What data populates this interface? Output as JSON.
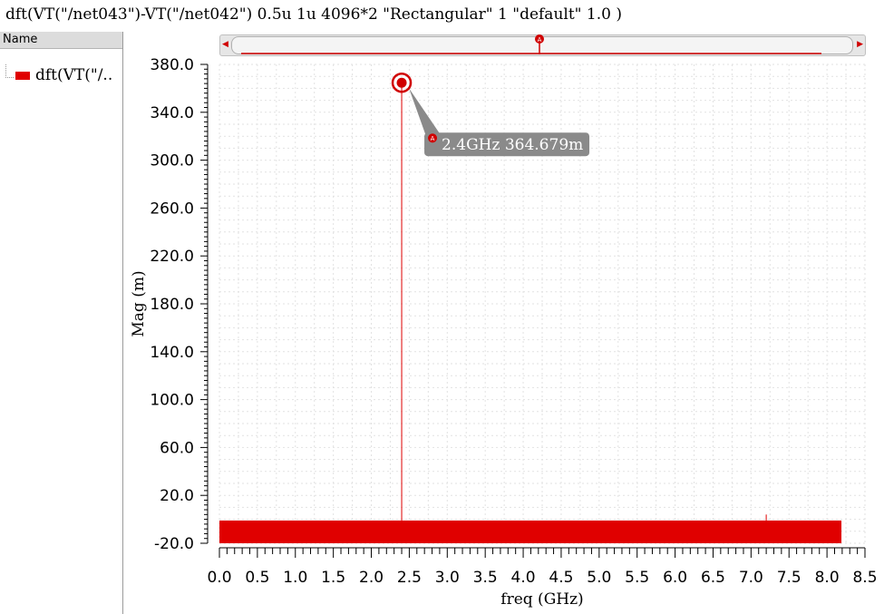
{
  "title": "dft(VT(\"/net043\")-VT(\"/net042\") 0.5u 1u 4096*2 \"Rectangular\" 1 \"default\" 1.0 )",
  "panel": {
    "header": "Name",
    "trace_label": "dft(VT(\"/..",
    "trace_color": "#e00000"
  },
  "scrollbar": {
    "left_arrow": "◀",
    "right_arrow": "▶",
    "marker_label": "A",
    "marker_position": 0.5
  },
  "chart_data": {
    "type": "line",
    "xlabel": "freq (GHz)",
    "ylabel": "Mag (m)",
    "xlim": [
      0.0,
      8.5
    ],
    "ylim": [
      -20.0,
      380.0
    ],
    "x_ticks": [
      "0.0",
      "0.5",
      "1.0",
      "1.5",
      "2.0",
      "2.5",
      "3.0",
      "3.5",
      "4.0",
      "4.5",
      "5.0",
      "5.5",
      "6.0",
      "6.5",
      "7.0",
      "7.5",
      "8.0",
      "8.5"
    ],
    "y_ticks": [
      "-20.0",
      "20.0",
      "60.0",
      "100.0",
      "140.0",
      "180.0",
      "220.0",
      "260.0",
      "300.0",
      "340.0",
      "380.0"
    ],
    "grid": true,
    "series": [
      {
        "name": "dft(VT(\"/..",
        "color": "#e00000",
        "noise_floor": {
          "x_range": [
            0.0,
            8.19
          ],
          "y_range": [
            -20.0,
            -1.0
          ]
        },
        "peaks": [
          {
            "x": 2.4,
            "y": 364.679
          },
          {
            "x": 7.2,
            "y": 4.0
          }
        ]
      }
    ],
    "marker": {
      "label": "A",
      "x": 2.4,
      "y": 364.679,
      "text": "2.4GHz 364.679m"
    }
  }
}
